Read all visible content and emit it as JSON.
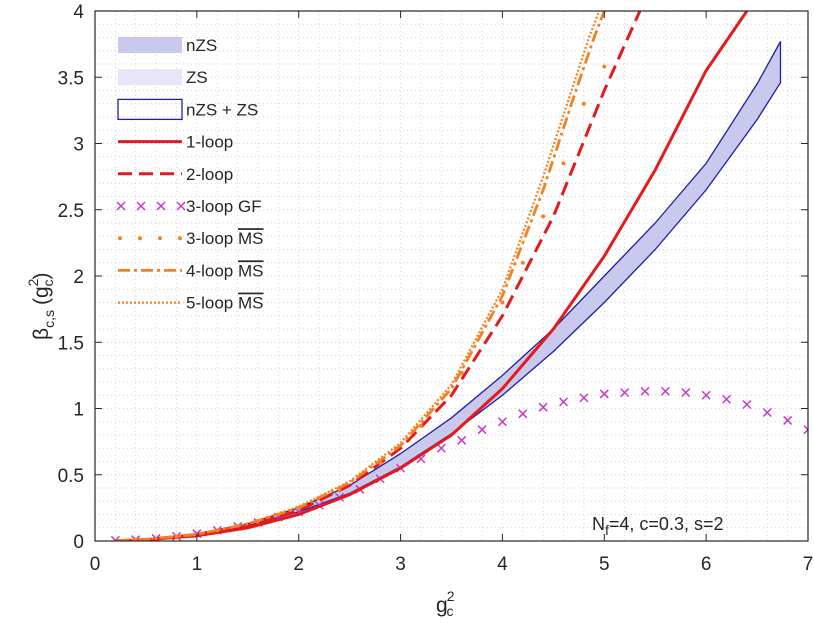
{
  "chart_data": {
    "type": "line",
    "xlabel": "g",
    "xlabel_sub": "c",
    "xlabel_sup": "2",
    "ylabel_symbol": "β",
    "ylabel_sub": "c,s",
    "ylabel_arg": "(g",
    "ylabel_arg_sub": "c",
    "ylabel_arg_sup": "2",
    "ylabel_arg_close": ")",
    "xlim": [
      0,
      7
    ],
    "ylim": [
      0,
      4
    ],
    "x_ticks": [
      "0",
      "1",
      "2",
      "3",
      "4",
      "5",
      "6",
      "7"
    ],
    "y_ticks": [
      "0",
      "0.5",
      "1",
      "1.5",
      "2",
      "2.5",
      "3",
      "3.5",
      "4"
    ],
    "grid": "dotted major and minor",
    "annotation": {
      "prefix": "N",
      "sub": "f",
      "rest": "=4, c=0.3, s=2"
    },
    "legend_position": "top-left",
    "legend": [
      {
        "label": "nZS",
        "kind": "fill-dark",
        "overline": ""
      },
      {
        "label": "ZS",
        "kind": "fill-light",
        "overline": ""
      },
      {
        "label": "nZS + ZS",
        "kind": "outline",
        "overline": ""
      },
      {
        "label": "1-loop",
        "kind": "solid",
        "overline": ""
      },
      {
        "label": "2-loop",
        "kind": "dashed",
        "overline": ""
      },
      {
        "label": "3-loop GF",
        "kind": "cross",
        "overline": ""
      },
      {
        "label": "3-loop ",
        "kind": "dots",
        "overline": "MS"
      },
      {
        "label": "4-loop ",
        "kind": "dashdot",
        "overline": "MS"
      },
      {
        "label": "5-loop ",
        "kind": "dotted",
        "overline": "MS"
      }
    ],
    "colors": {
      "band_fill": "#c9c9ee",
      "band_edge": "#1f1fa0",
      "red": "#e41a1c",
      "magenta": "#c837c8",
      "orange": "#f4801f",
      "grid": "#c8c8c8",
      "axis": "#262626"
    },
    "series": [
      {
        "name": "band upper",
        "x": [
          0.2,
          0.5,
          1,
          1.5,
          2,
          2.5,
          3,
          3.5,
          4,
          4.5,
          5,
          5.5,
          6,
          6.5,
          6.73
        ],
        "y": [
          0.002,
          0.013,
          0.055,
          0.13,
          0.25,
          0.42,
          0.66,
          0.93,
          1.25,
          1.6,
          2.0,
          2.4,
          2.85,
          3.45,
          3.77
        ]
      },
      {
        "name": "band lower",
        "x": [
          0.2,
          0.5,
          1,
          1.5,
          2,
          2.5,
          3,
          3.5,
          4,
          4.5,
          5,
          5.5,
          6,
          6.5,
          6.73
        ],
        "y": [
          0.002,
          0.012,
          0.05,
          0.115,
          0.22,
          0.36,
          0.56,
          0.81,
          1.1,
          1.43,
          1.8,
          2.2,
          2.65,
          3.18,
          3.46
        ]
      },
      {
        "name": "1-loop",
        "x": [
          0.2,
          0.5,
          1,
          1.5,
          2,
          2.5,
          3,
          3.5,
          4,
          4.5,
          5,
          5.5,
          6,
          6.4
        ],
        "y": [
          0.001,
          0.01,
          0.04,
          0.1,
          0.2,
          0.35,
          0.55,
          0.8,
          1.15,
          1.6,
          2.15,
          2.8,
          3.55,
          4.0
        ]
      },
      {
        "name": "2-loop",
        "x": [
          0.2,
          0.5,
          1,
          1.5,
          2,
          2.5,
          3,
          3.5,
          4,
          4.5,
          5,
          5.35
        ],
        "y": [
          0.002,
          0.011,
          0.048,
          0.115,
          0.23,
          0.42,
          0.7,
          1.1,
          1.7,
          2.45,
          3.4,
          4.0
        ]
      },
      {
        "name": "3-loop GF",
        "x": [
          0.2,
          0.4,
          0.6,
          0.8,
          1,
          1.2,
          1.4,
          1.6,
          1.8,
          2,
          2.2,
          2.4,
          2.6,
          2.8,
          3,
          3.2,
          3.4,
          3.6,
          3.8,
          4,
          4.2,
          4.4,
          4.6,
          4.8,
          5,
          5.2,
          5.4,
          5.6,
          5.8,
          6,
          6.2,
          6.4,
          6.6,
          6.8,
          7.0
        ],
        "y": [
          0.005,
          0.01,
          0.02,
          0.035,
          0.055,
          0.08,
          0.11,
          0.14,
          0.18,
          0.22,
          0.27,
          0.33,
          0.39,
          0.47,
          0.55,
          0.62,
          0.7,
          0.76,
          0.84,
          0.9,
          0.96,
          1.01,
          1.05,
          1.08,
          1.11,
          1.12,
          1.13,
          1.13,
          1.12,
          1.1,
          1.07,
          1.03,
          0.97,
          0.91,
          0.84
        ]
      },
      {
        "name": "3-loop MS",
        "x": [
          0.4,
          0.8,
          1.2,
          1.6,
          2,
          2.4,
          2.8,
          3.2,
          3.6,
          4.0,
          4.2,
          4.4,
          4.6,
          4.8,
          5.0
        ],
        "y": [
          0.01,
          0.035,
          0.08,
          0.15,
          0.25,
          0.39,
          0.59,
          0.87,
          1.27,
          1.8,
          2.1,
          2.45,
          2.85,
          3.3,
          3.58
        ]
      },
      {
        "name": "4-loop MS",
        "x": [
          0.2,
          0.5,
          1,
          1.5,
          2,
          2.5,
          3,
          3.5,
          4,
          4.4,
          4.7,
          4.9,
          5.0
        ],
        "y": [
          0.002,
          0.011,
          0.05,
          0.13,
          0.25,
          0.44,
          0.72,
          1.15,
          1.85,
          2.65,
          3.35,
          3.8,
          4.0
        ]
      },
      {
        "name": "5-loop MS",
        "x": [
          0.2,
          0.5,
          1,
          1.5,
          2,
          2.5,
          3,
          3.5,
          4,
          4.4,
          4.7,
          4.85,
          4.95
        ],
        "y": [
          0.002,
          0.011,
          0.05,
          0.13,
          0.26,
          0.45,
          0.74,
          1.18,
          1.9,
          2.75,
          3.45,
          3.8,
          4.0
        ]
      }
    ]
  }
}
